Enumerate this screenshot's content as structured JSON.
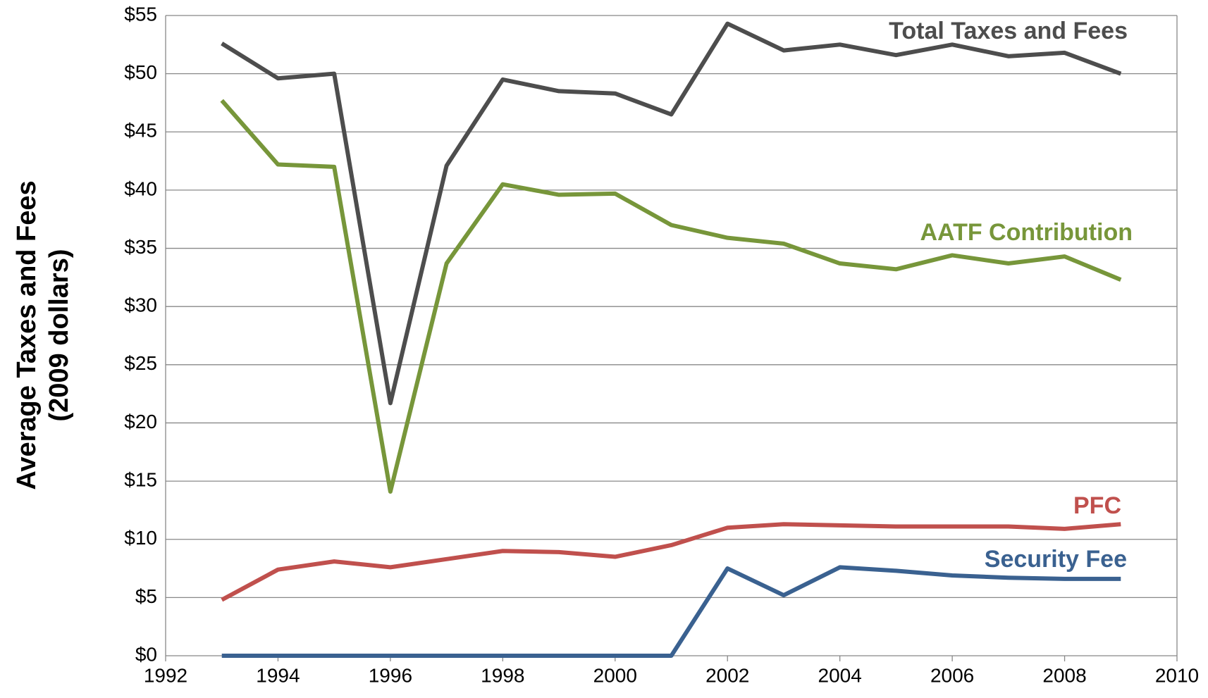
{
  "chart_data": {
    "type": "line",
    "y_label": [
      "Average Taxes and Fees",
      "(2009 dollars)"
    ],
    "x": [
      1993,
      1994,
      1995,
      1996,
      1997,
      1998,
      1999,
      2000,
      2001,
      2002,
      2003,
      2004,
      2005,
      2006,
      2007,
      2008,
      2009
    ],
    "series": [
      {
        "name": "Total Taxes and Fees",
        "color": "#4d4d4d",
        "values": [
          52.6,
          49.6,
          50.0,
          21.7,
          42.1,
          49.5,
          48.5,
          48.3,
          46.5,
          54.3,
          52.0,
          52.5,
          51.6,
          52.5,
          51.5,
          51.8,
          50.0
        ]
      },
      {
        "name": "AATF Contribution",
        "color": "#77963a",
        "values": [
          47.7,
          42.2,
          42.0,
          14.1,
          33.7,
          40.5,
          39.6,
          39.7,
          37.0,
          35.9,
          35.4,
          33.7,
          33.2,
          34.4,
          33.7,
          34.3,
          32.3
        ]
      },
      {
        "name": "PFC",
        "color": "#c0504d",
        "values": [
          4.8,
          7.4,
          8.1,
          7.6,
          8.3,
          9.0,
          8.9,
          8.5,
          9.5,
          11.0,
          11.3,
          11.2,
          11.1,
          11.1,
          11.1,
          10.9,
          11.3
        ]
      },
      {
        "name": "Security Fee",
        "color": "#3a6190",
        "values": [
          0,
          0,
          0,
          0,
          0,
          0,
          0,
          0,
          0,
          7.5,
          5.2,
          7.6,
          7.3,
          6.9,
          6.7,
          6.6,
          6.6
        ]
      }
    ],
    "xlim": [
      1992,
      2010
    ],
    "xticks": [
      1992,
      1994,
      1996,
      1998,
      2000,
      2002,
      2004,
      2006,
      2008,
      2010
    ],
    "ylim": [
      0,
      55
    ],
    "yticks": [
      {
        "value": 0,
        "label": "$0"
      },
      {
        "value": 5,
        "label": "$5"
      },
      {
        "value": 10,
        "label": "$10"
      },
      {
        "value": 15,
        "label": "$15"
      },
      {
        "value": 20,
        "label": "$20"
      },
      {
        "value": 25,
        "label": "$25"
      },
      {
        "value": 30,
        "label": "$30"
      },
      {
        "value": 35,
        "label": "$35"
      },
      {
        "value": 40,
        "label": "$40"
      },
      {
        "value": 45,
        "label": "$45"
      },
      {
        "value": 50,
        "label": "$50"
      },
      {
        "value": 55,
        "label": "$55"
      }
    ],
    "grid": true
  }
}
